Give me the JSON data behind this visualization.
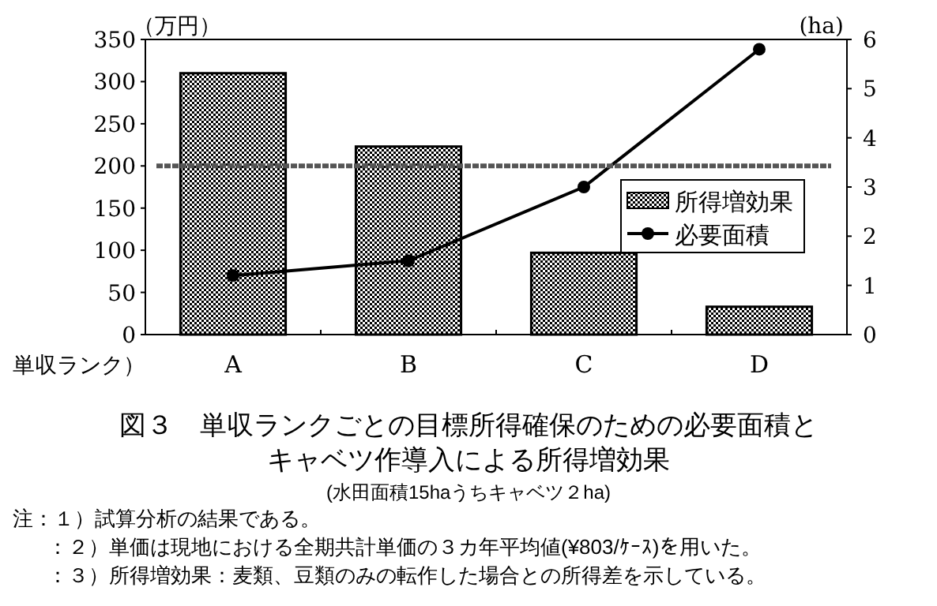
{
  "chart_data": {
    "type": "bar",
    "title": "図３　単収ランクごとの目標所得確保のための必要面積とキャベツ作導入による所得増効果",
    "subtitle": "(水田面積15haうちキャベツ２ha)",
    "xlabel": "単収ランク）",
    "ylabel": "（万円）",
    "y2label": "(ha)",
    "categories": [
      "A",
      "B",
      "C",
      "D"
    ],
    "series": [
      {
        "name": "所得増効果",
        "color": "#000000",
        "values": [
          310,
          223,
          97,
          33
        ]
      },
      {
        "name": "必要面積",
        "type": "line",
        "axis": "y2",
        "color": "#000000",
        "marker": "circle",
        "values": [
          1.2,
          1.5,
          3.0,
          5.8
        ]
      }
    ],
    "ylim": [
      0,
      350
    ],
    "yticks": [
      0,
      50,
      100,
      150,
      200,
      250,
      300,
      350
    ],
    "y2lim": [
      0,
      6
    ],
    "y2ticks": [
      0,
      1,
      2,
      3,
      4,
      5,
      6
    ],
    "ref_lines": [
      {
        "axis": "y",
        "value": 200,
        "color": "#555555",
        "line_style": "dashed"
      }
    ],
    "legend": "right",
    "grid": false,
    "annotations": [
      "注：１）試算分析の結果である。",
      "：２）単価は現地における全期共計単価の３カ年平均値(¥803/ｹｰｽ)を用いた。",
      "：３）所得増効果：麦類、豆類のみの転作した場合との所得差を示している。"
    ]
  }
}
